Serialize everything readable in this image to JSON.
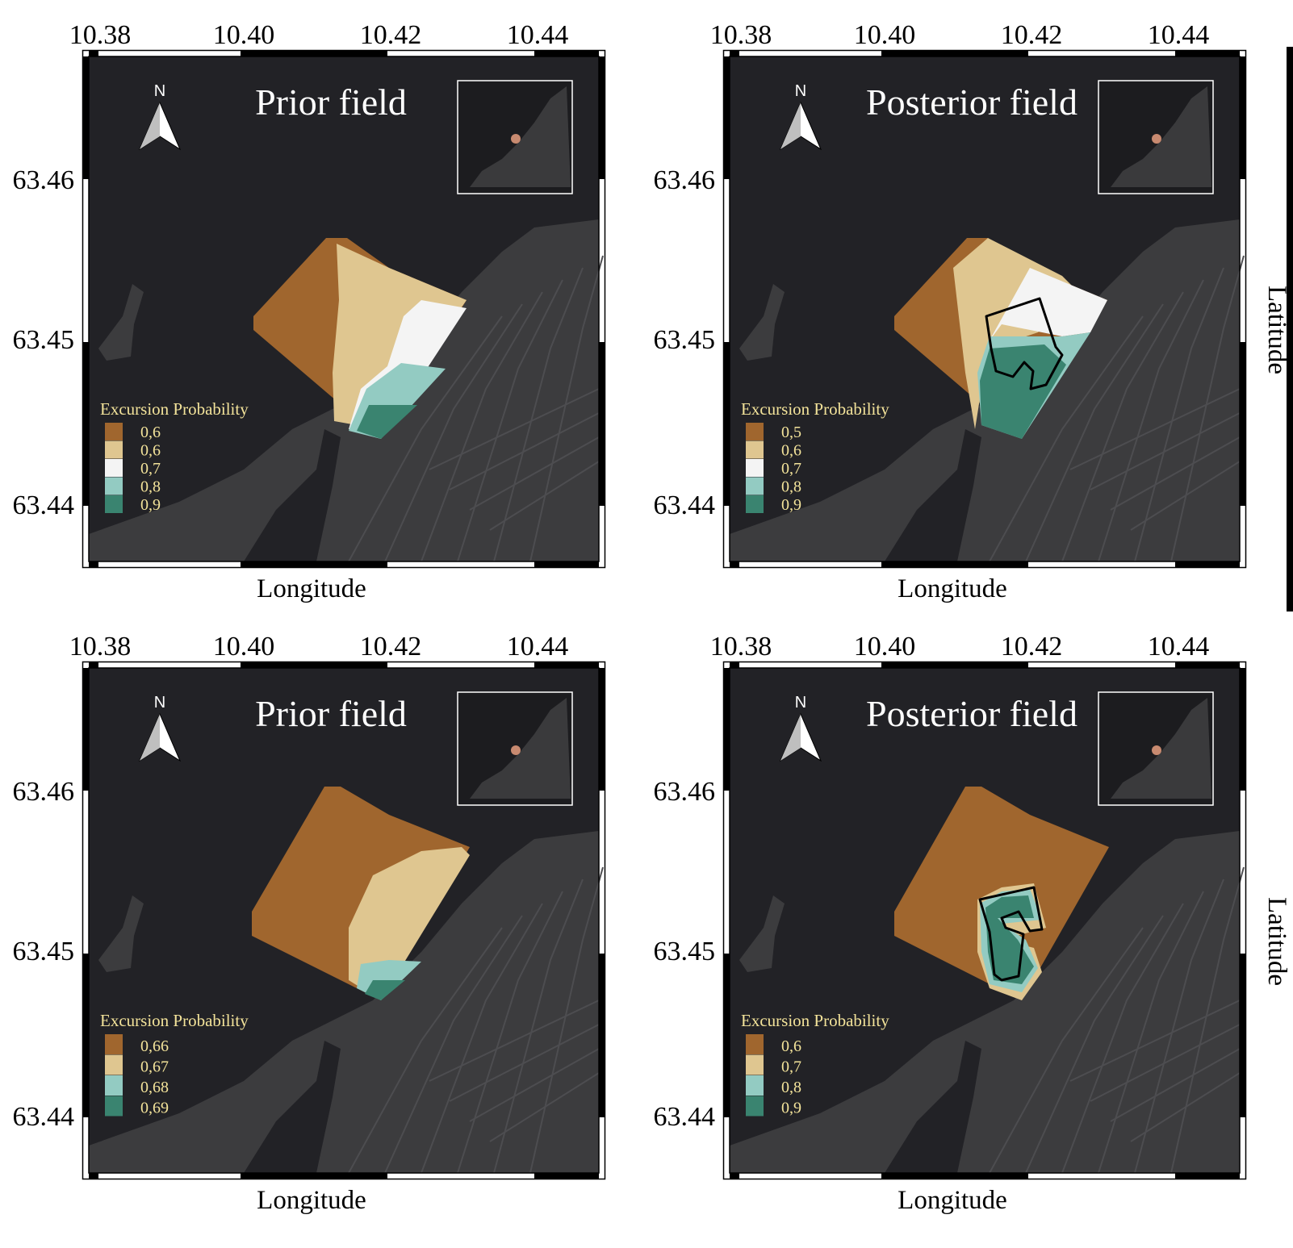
{
  "colors": {
    "water": "#222226",
    "land": "#3c3c3e",
    "road": "#4d4d50",
    "brown": "#a0662e",
    "tan": "#dfc690",
    "white": "#f4f4f4",
    "light_teal": "#93cbc2",
    "teal": "#3a8470",
    "legend_text": "#f3e39a"
  },
  "x_ticks": [
    "10.38",
    "10.40",
    "10.42",
    "10.44"
  ],
  "y_ticks": [
    "63.46",
    "63.45",
    "63.44"
  ],
  "north_label": "N",
  "legend_title": "Excursion Probability",
  "panels": [
    {
      "title": "Prior field",
      "xlabel": "Longitude",
      "ylabel": "",
      "legend": [
        "0,6",
        "0,6",
        "0,7",
        "0,8",
        "0,9"
      ],
      "legend_colors": [
        "brown",
        "tan",
        "white",
        "light_teal",
        "teal"
      ],
      "path": false
    },
    {
      "title": "Posterior field",
      "xlabel": "Longitude",
      "ylabel": "Latitude",
      "legend": [
        "0,5",
        "0,6",
        "0,7",
        "0,8",
        "0,9"
      ],
      "legend_colors": [
        "brown",
        "tan",
        "white",
        "light_teal",
        "teal"
      ],
      "path": true
    },
    {
      "title": "Prior field",
      "xlabel": "Longitude",
      "ylabel": "",
      "legend": [
        "0,66",
        "0,67",
        "0,68",
        "0,69"
      ],
      "legend_colors": [
        "brown",
        "tan",
        "light_teal",
        "teal"
      ],
      "path": false
    },
    {
      "title": "Posterior field",
      "xlabel": "Longitude",
      "ylabel": "Latitude",
      "legend": [
        "0,6",
        "0,7",
        "0,8",
        "0,9"
      ],
      "legend_colors": [
        "brown",
        "tan",
        "light_teal",
        "teal"
      ],
      "path": true
    }
  ]
}
